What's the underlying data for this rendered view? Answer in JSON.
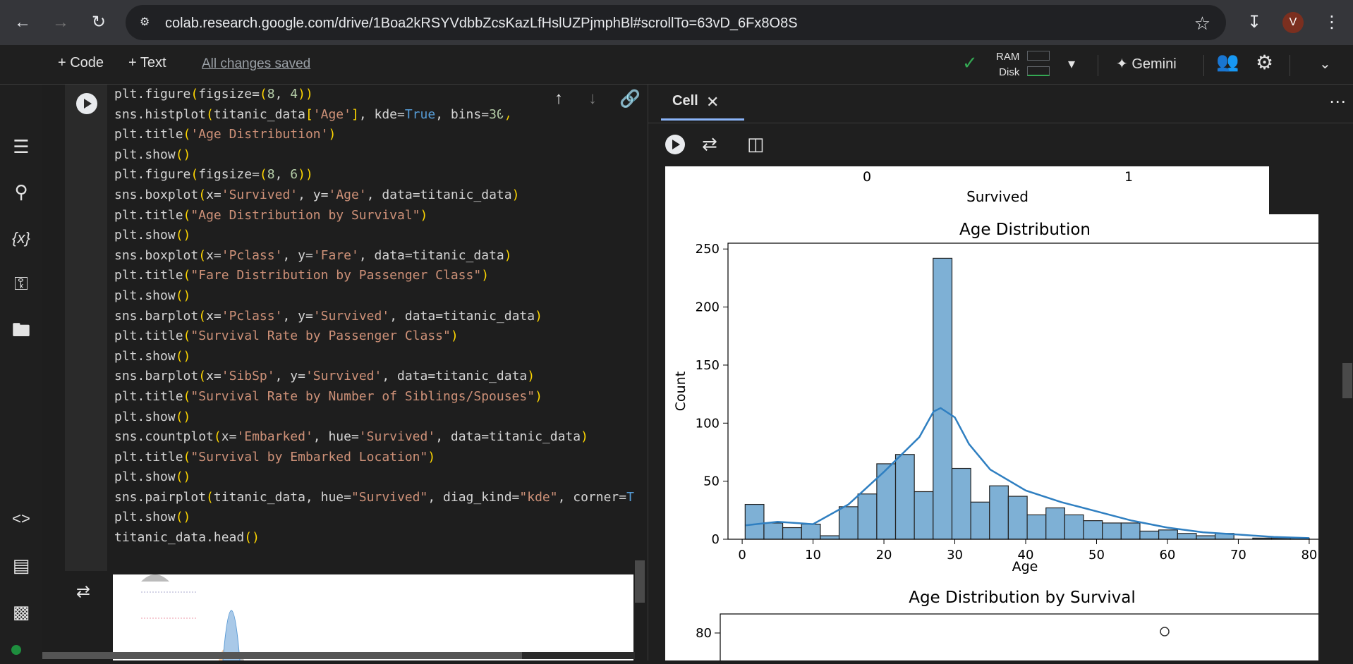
{
  "browser": {
    "url": "colab.research.google.com/drive/1Boa2kRSYVdbbZcsKazLfHslUZPjmphBl#scrollTo=63vD_6Fx8O8S",
    "avatar_letter": "V"
  },
  "toolbar": {
    "code_label": "+ Code",
    "text_label": "+ Text",
    "saved_status": "All changes saved",
    "ram_label": "RAM",
    "disk_label": "Disk",
    "gemini_label": "Gemini"
  },
  "code_lines": [
    "plt.figure(figsize=(8, 4))",
    "sns.histplot(titanic_data['Age'], kde=True, bins=30)",
    "plt.title('Age Distribution')",
    "plt.show()",
    "plt.figure(figsize=(8, 6))",
    "sns.boxplot(x='Survived', y='Age', data=titanic_data)",
    "plt.title(\"Age Distribution by Survival\")",
    "plt.show()",
    "sns.boxplot(x='Pclass', y='Fare', data=titanic_data)",
    "plt.title(\"Fare Distribution by Passenger Class\")",
    "plt.show()",
    "sns.barplot(x='Pclass', y='Survived', data=titanic_data)",
    "plt.title(\"Survival Rate by Passenger Class\")",
    "plt.show()",
    "sns.barplot(x='SibSp', y='Survived', data=titanic_data)",
    "plt.title(\"Survival Rate by Number of Siblings/Spouses\")",
    "plt.show()",
    "sns.countplot(x='Embarked', hue='Survived', data=titanic_data)",
    "plt.title(\"Survival by Embarked Location\")",
    "plt.show()",
    "sns.pairplot(titanic_data, hue=\"Survived\", diag_kind=\"kde\", corner=True)",
    "plt.show()",
    "titanic_data.head()"
  ],
  "panel": {
    "tab_label": "Cell"
  },
  "chart_data": [
    {
      "type": "bar",
      "title": "",
      "xlabel": "Survived",
      "categories": [
        "0",
        "1"
      ]
    },
    {
      "type": "bar",
      "title": "Age Distribution",
      "xlabel": "Age",
      "ylabel": "Count",
      "xlim": [
        -2,
        82
      ],
      "ylim": [
        0,
        255
      ],
      "xticks": [
        0,
        10,
        20,
        30,
        40,
        50,
        60,
        70,
        80
      ],
      "yticks": [
        0,
        50,
        100,
        150,
        200,
        250
      ],
      "bin_edges": [
        0.42,
        3.07,
        5.72,
        8.38,
        11.03,
        13.68,
        16.33,
        18.99,
        21.64,
        24.29,
        26.94,
        29.6,
        32.25,
        34.9,
        37.55,
        40.21,
        42.86,
        45.51,
        48.16,
        50.82,
        53.47,
        56.12,
        58.77,
        61.43,
        64.08,
        66.73,
        69.38,
        72.04,
        74.69,
        77.34,
        80.0
      ],
      "values": [
        30,
        14,
        10,
        13,
        3,
        28,
        39,
        65,
        73,
        41,
        242,
        61,
        32,
        46,
        37,
        21,
        27,
        21,
        16,
        14,
        14,
        7,
        8,
        5,
        3,
        5,
        0,
        1,
        1,
        1
      ],
      "kde": [
        [
          0.5,
          12
        ],
        [
          5,
          15
        ],
        [
          10,
          13
        ],
        [
          15,
          30
        ],
        [
          20,
          58
        ],
        [
          25,
          88
        ],
        [
          27,
          110
        ],
        [
          28,
          113
        ],
        [
          30,
          105
        ],
        [
          32,
          82
        ],
        [
          35,
          60
        ],
        [
          40,
          42
        ],
        [
          45,
          32
        ],
        [
          50,
          24
        ],
        [
          55,
          16
        ],
        [
          60,
          10
        ],
        [
          65,
          6
        ],
        [
          70,
          4
        ],
        [
          75,
          2
        ],
        [
          80,
          1
        ]
      ],
      "color": "#7eb0d5",
      "kde_color": "#2f7fc1"
    },
    {
      "type": "box",
      "title": "Age Distribution by Survival",
      "yticks": [
        80
      ]
    }
  ]
}
